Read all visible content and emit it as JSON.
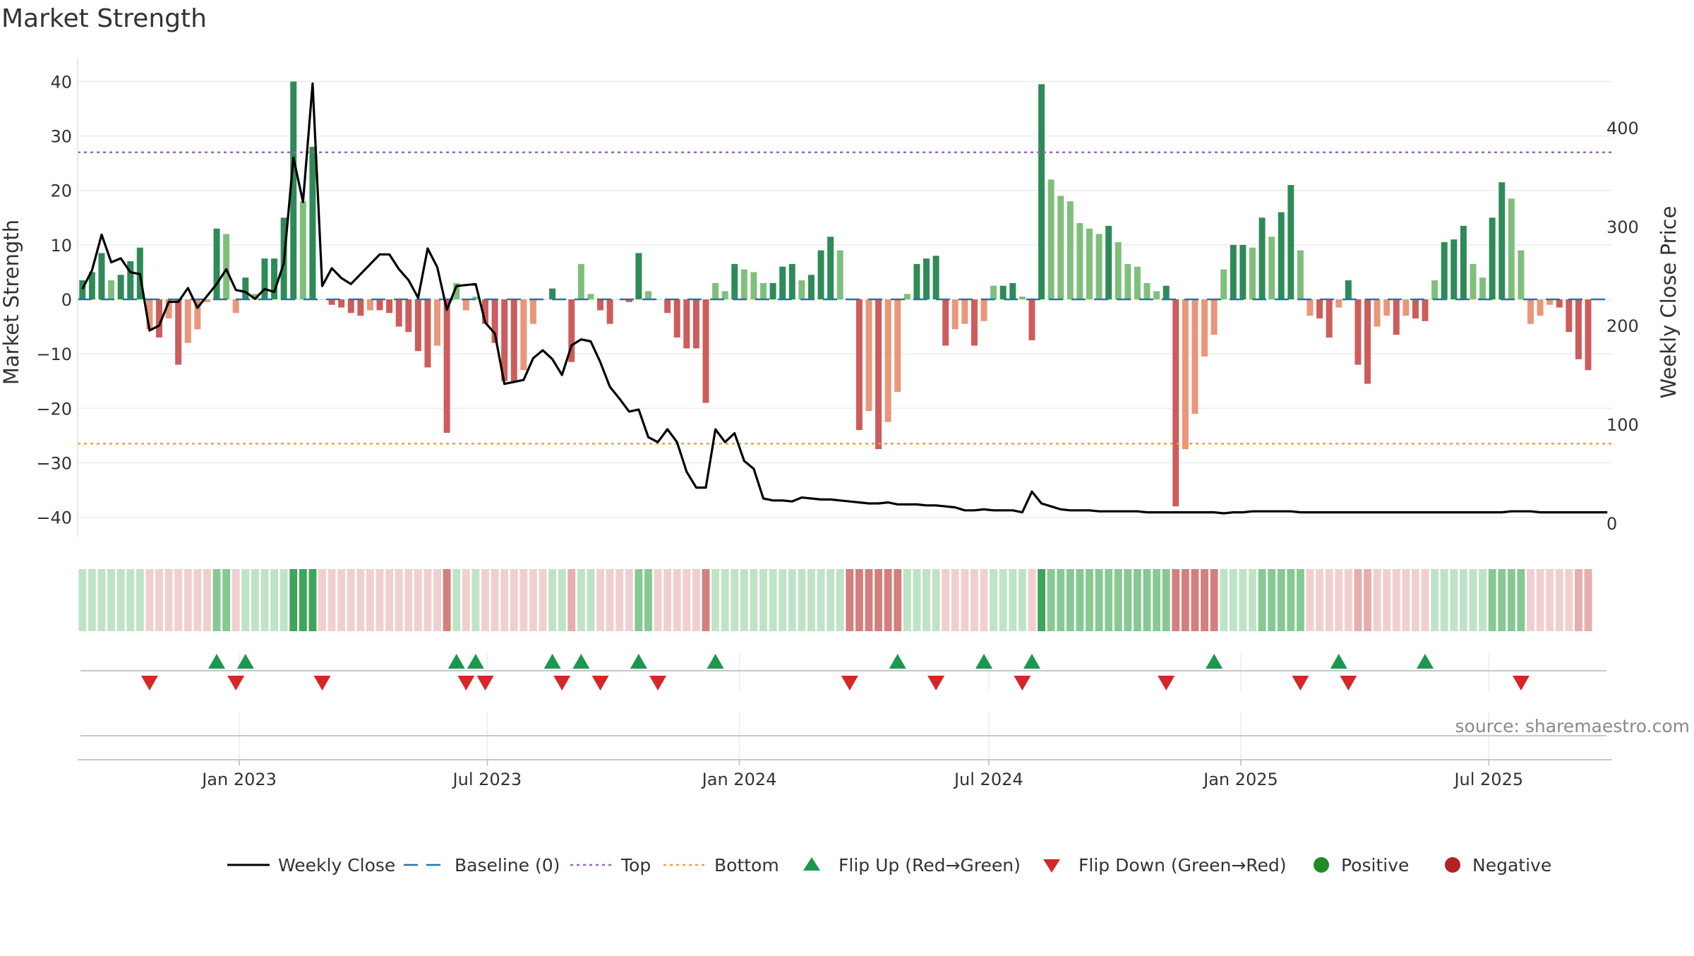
{
  "title": "Market Strength",
  "source": "source: sharemaestro.com",
  "colors": {
    "strong_green": "#2e8b57",
    "light_green": "#7fbf7b",
    "strong_red": "#cd5c5c",
    "light_red": "#e9967a",
    "line": "#000000",
    "baseline": "#1f77b4",
    "top": "#9467bd",
    "bottom": "#f0a040",
    "flip_up": "#1a9850",
    "flip_down": "#d62728",
    "positive": "#228b22",
    "negative": "#b22222"
  },
  "chart_data": {
    "type": "bar",
    "x_start": "2022-09-05",
    "x_interval": "weekly",
    "xlim": [
      "2022-09-05",
      "2025-09-29"
    ],
    "x_ticks": [
      "Jan 2023",
      "Jul 2023",
      "Jan 2024",
      "Jul 2024",
      "Jan 2025",
      "Jul 2025"
    ],
    "y_left": {
      "label": "Market Strength",
      "range": [
        -42,
        42
      ],
      "ticks": [
        40,
        30,
        20,
        10,
        0,
        -10,
        -20,
        -30,
        -40
      ]
    },
    "y_right": {
      "label": "Weekly Close Price",
      "range": [
        -5,
        458
      ],
      "ticks": [
        400,
        300,
        200,
        100,
        0
      ]
    },
    "top_level": 27,
    "bottom_level": -26.5,
    "strength": [
      3.5,
      5,
      8.5,
      3.5,
      4.5,
      7,
      9.5,
      -5.5,
      -7,
      -3.5,
      -12,
      -8,
      -5.5,
      -0.5,
      13,
      12,
      -2.5,
      4,
      1,
      7.5,
      7.5,
      15,
      40,
      18,
      28,
      0,
      -1,
      -1.5,
      -2.5,
      -3,
      -2,
      -2,
      -2.5,
      -5,
      -6,
      -9.5,
      -12.5,
      -8.5,
      -24.5,
      3,
      -2,
      0.5,
      -4.5,
      -8,
      -15,
      -15,
      -13,
      -4.5,
      0,
      2,
      0,
      -11.5,
      6.5,
      1,
      -2,
      -4.5,
      0,
      -0.5,
      8.5,
      1.5,
      0,
      -2.5,
      -7,
      -9,
      -9,
      -19,
      3,
      1.5,
      6.5,
      5.5,
      5,
      3,
      3,
      6,
      6.5,
      3.5,
      4.5,
      9,
      11.5,
      9,
      0,
      -24,
      -20.5,
      -27.5,
      -22.5,
      -17,
      1,
      6.5,
      7.5,
      8,
      -8.5,
      -5.5,
      -4.5,
      -8.5,
      -4,
      2.5,
      2.5,
      3,
      0.5,
      -7.5,
      39.5,
      22,
      19,
      18,
      14,
      13,
      12,
      13.5,
      10.5,
      6.5,
      6,
      3,
      1.5,
      2.5,
      -38,
      -27.5,
      -21,
      -10.5,
      -6.5,
      5.5,
      10,
      10,
      9.5,
      15,
      11.5,
      16,
      21,
      9,
      -3,
      -3.5,
      -7,
      -1.5,
      3.5,
      -12,
      -15.5,
      -5,
      -3,
      -6.5,
      -3,
      -3.5,
      -4,
      3.5,
      10.5,
      11,
      13.5,
      6.5,
      4,
      15,
      21.5,
      18.5,
      9,
      -4.5,
      -3,
      -1,
      -1.5,
      -6,
      -11,
      -13
    ],
    "close": [
      237,
      256,
      292,
      264,
      268,
      254,
      252,
      195,
      200,
      224,
      224,
      238,
      218,
      230,
      242,
      257,
      236,
      234,
      227,
      237,
      234,
      263,
      370,
      325,
      445,
      240,
      258,
      248,
      242,
      252,
      262,
      272,
      272,
      257,
      246,
      228,
      278,
      259,
      216,
      240,
      241,
      242,
      203,
      192,
      141,
      143,
      145,
      167,
      175,
      166,
      150,
      180,
      186,
      184,
      163,
      138,
      126,
      113,
      115,
      87,
      82,
      95,
      82,
      52,
      36,
      36,
      95,
      82,
      91,
      63,
      55,
      25,
      23,
      23,
      22,
      26,
      25,
      24,
      24,
      23,
      22,
      21,
      20,
      20,
      21,
      19,
      19,
      19,
      18,
      18,
      17,
      16,
      13,
      13,
      14,
      13,
      13,
      13,
      11,
      32,
      20,
      17,
      14,
      13,
      13,
      13,
      12,
      12,
      12,
      12,
      12,
      11,
      11,
      11,
      11,
      11,
      11,
      11,
      11,
      10,
      11,
      11,
      12,
      12,
      12,
      12,
      12,
      11,
      11,
      11,
      11,
      11,
      11,
      11,
      11,
      11,
      11,
      11,
      11,
      11,
      11,
      11,
      11,
      11,
      11,
      11,
      11,
      11,
      11,
      12,
      12,
      12,
      11,
      11,
      11,
      11,
      11,
      11,
      11,
      11
    ],
    "heat": [
      2,
      2,
      2,
      2,
      2,
      2,
      2,
      -1,
      -1,
      -1,
      -1,
      -1,
      -1,
      -1,
      3,
      3,
      -1,
      2,
      2,
      2,
      2,
      2,
      4,
      4,
      4,
      -1,
      -1,
      -1,
      -1,
      -1,
      -1,
      -1,
      -1,
      -1,
      -1,
      -1,
      -1,
      -1,
      -3,
      2,
      -1,
      2,
      -1,
      -1,
      -1,
      -1,
      -1,
      -1,
      -1,
      2,
      2,
      -2,
      2,
      2,
      -1,
      -1,
      -1,
      -1,
      3,
      3,
      -1,
      -1,
      -1,
      -1,
      -1,
      -3,
      2,
      2,
      2,
      2,
      2,
      2,
      2,
      2,
      2,
      2,
      2,
      2,
      2,
      2,
      -3,
      -3,
      -3,
      -3,
      -3,
      -3,
      2,
      2,
      2,
      2,
      -1,
      -1,
      -1,
      -1,
      -1,
      2,
      2,
      2,
      2,
      -1,
      4,
      3,
      3,
      3,
      3,
      3,
      3,
      3,
      3,
      3,
      3,
      3,
      3,
      3,
      -3,
      -3,
      -3,
      -3,
      -3,
      2,
      2,
      2,
      2,
      3,
      3,
      3,
      3,
      3,
      -1,
      -1,
      -1,
      -1,
      -1,
      -2,
      -2,
      -1,
      -1,
      -1,
      -1,
      -1,
      -1,
      2,
      2,
      2,
      2,
      2,
      2,
      3,
      3,
      3,
      3,
      -1,
      -1,
      -1,
      -1,
      -1,
      -2,
      -2
    ],
    "flip_up": [
      14,
      17,
      39,
      41,
      49,
      52,
      58,
      66,
      85,
      94,
      99,
      118,
      131,
      140
    ],
    "flip_down": [
      7,
      16,
      25,
      40,
      42,
      50,
      54,
      60,
      80,
      89,
      98,
      113,
      127,
      132,
      150
    ],
    "legend": [
      {
        "key": "weekly_close",
        "label": "Weekly Close"
      },
      {
        "key": "baseline",
        "label": "Baseline (0)"
      },
      {
        "key": "top",
        "label": "Top"
      },
      {
        "key": "bottom",
        "label": "Bottom"
      },
      {
        "key": "flip_up",
        "label": "Flip Up (Red→Green)"
      },
      {
        "key": "flip_down",
        "label": "Flip Down (Green→Red)"
      },
      {
        "key": "positive",
        "label": "Positive"
      },
      {
        "key": "negative",
        "label": "Negative"
      }
    ]
  }
}
